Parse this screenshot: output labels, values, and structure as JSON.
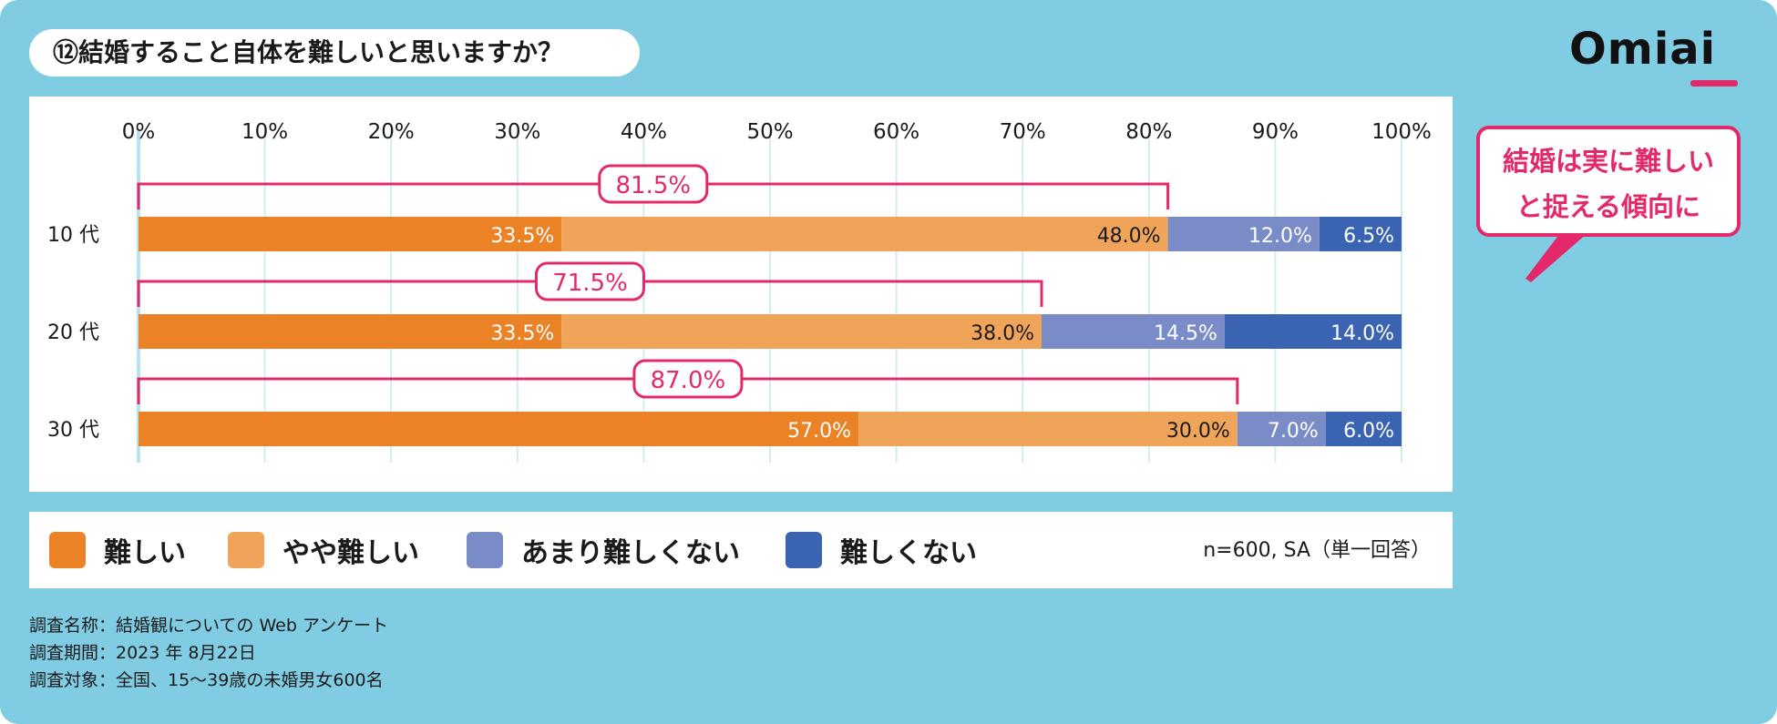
{
  "title": "⑫結婚すること自体を難しいと思いますか？",
  "logo_text": "Omiai",
  "callout": {
    "line1": "結婚は実に難しい",
    "line2": "と捉える傾向に"
  },
  "colors": {
    "frame_bg": "#80cde3",
    "accent_pink": "#e4296a",
    "difficult": "#ec8226",
    "somewhat_difficult": "#f0a459",
    "not_very_difficult": "#7a8cc8",
    "not_difficult": "#3a64b1"
  },
  "chart_data": {
    "type": "bar",
    "orientation": "horizontal",
    "stacked": true,
    "title": "⑫結婚すること自体を難しいと思いますか？",
    "xlim": [
      0,
      100
    ],
    "x_ticks": [
      "0%",
      "10%",
      "20%",
      "30%",
      "40%",
      "50%",
      "60%",
      "70%",
      "80%",
      "90%",
      "100%"
    ],
    "categories": [
      "10 代",
      "20 代",
      "30 代"
    ],
    "series": [
      {
        "name": "難しい",
        "color": "#ec8226",
        "values": [
          33.5,
          33.5,
          57.0
        ],
        "labels": [
          "33.5%",
          "33.5%",
          "57.0%"
        ]
      },
      {
        "name": "やや難しい",
        "color": "#f0a459",
        "values": [
          48.0,
          38.0,
          30.0
        ],
        "labels": [
          "48.0%",
          "38.0%",
          "30.0%"
        ]
      },
      {
        "name": "あまり難しくない",
        "color": "#7a8cc8",
        "values": [
          12.0,
          14.5,
          7.0
        ],
        "labels": [
          "12.0%",
          "14.5%",
          "7.0%"
        ]
      },
      {
        "name": "難しくない",
        "color": "#3a64b1",
        "values": [
          6.5,
          14.0,
          6.0
        ],
        "labels": [
          "6.5%",
          "14.0%",
          "6.0%"
        ]
      }
    ],
    "bracket_totals": [
      81.5,
      71.5,
      87.0
    ],
    "bracket_labels": [
      "81.5%",
      "71.5%",
      "87.0%"
    ],
    "label_colors": [
      "#ffffff",
      "#1a1a1a",
      "#ffffff",
      "#ffffff"
    ]
  },
  "legend": {
    "items": [
      {
        "label": "難しい",
        "color": "#ec8226"
      },
      {
        "label": "やや難しい",
        "color": "#f0a459"
      },
      {
        "label": "あまり難しくない",
        "color": "#7a8cc8"
      },
      {
        "label": "難しくない",
        "color": "#3a64b1"
      }
    ],
    "sample": "n=600, SA（単一回答）"
  },
  "notes": [
    "調査名称：結婚観についての Web アンケート",
    "調査期間：2023 年 8月22日",
    "調査対象：全国、15～39歳の未婚男女600名"
  ]
}
